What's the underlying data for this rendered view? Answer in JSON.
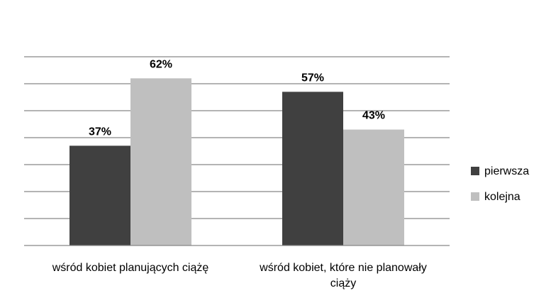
{
  "chart_data": {
    "type": "bar",
    "title": "",
    "xlabel": "",
    "ylabel": "",
    "ylim": [
      0,
      70
    ],
    "grid": true,
    "legend_position": "right",
    "categories": [
      [
        "wśród kobiet planujących ciążę"
      ],
      [
        "wśród kobiet, które nie planowały",
        "ciąży"
      ]
    ],
    "series": [
      {
        "name": "pierwsza",
        "values": [
          37,
          57
        ],
        "labels": [
          "37%",
          "57%"
        ],
        "color": "#404040"
      },
      {
        "name": "kolejna",
        "values": [
          62,
          43
        ],
        "labels": [
          "62%",
          "43%"
        ],
        "color": "#bfbfbf"
      }
    ]
  }
}
